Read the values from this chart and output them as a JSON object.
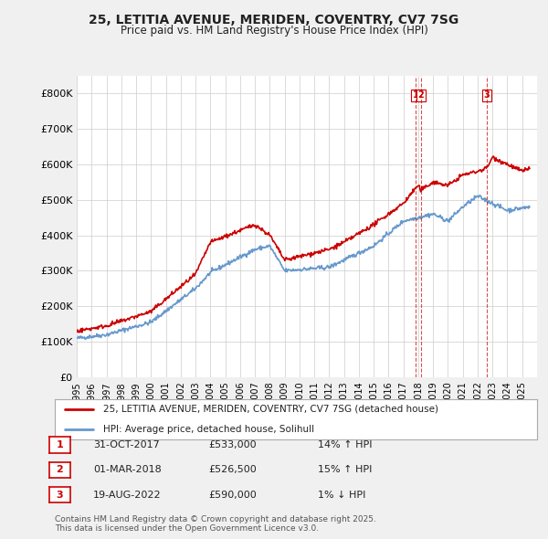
{
  "title": "25, LETITIA AVENUE, MERIDEN, COVENTRY, CV7 7SG",
  "subtitle": "Price paid vs. HM Land Registry's House Price Index (HPI)",
  "ylabel_ticks": [
    "£0",
    "£100K",
    "£200K",
    "£300K",
    "£400K",
    "£500K",
    "£600K",
    "£700K",
    "£800K"
  ],
  "ytick_values": [
    0,
    100000,
    200000,
    300000,
    400000,
    500000,
    600000,
    700000,
    800000
  ],
  "ylim": [
    0,
    850000
  ],
  "xlim_start": 1995.0,
  "xlim_end": 2026.0,
  "line1_color": "#cc0000",
  "line2_color": "#6699cc",
  "line1_label": "25, LETITIA AVENUE, MERIDEN, COVENTRY, CV7 7SG (detached house)",
  "line2_label": "HPI: Average price, detached house, Solihull",
  "sale1_date": 2017.83,
  "sale1_price": 533000,
  "sale1_label": "1",
  "sale2_date": 2018.17,
  "sale2_price": 526500,
  "sale2_label": "2",
  "sale3_date": 2022.63,
  "sale3_price": 590000,
  "sale3_label": "3",
  "annotation_table": [
    [
      "1",
      "31-OCT-2017",
      "£533,000",
      "14% ↑ HPI"
    ],
    [
      "2",
      "01-MAR-2018",
      "£526,500",
      "15% ↑ HPI"
    ],
    [
      "3",
      "19-AUG-2022",
      "£590,000",
      "1% ↓ HPI"
    ]
  ],
  "footer_text": "Contains HM Land Registry data © Crown copyright and database right 2025.\nThis data is licensed under the Open Government Licence v3.0.",
  "bg_color": "#f0f0f0",
  "plot_bg_color": "#ffffff",
  "grid_color": "#cccccc"
}
